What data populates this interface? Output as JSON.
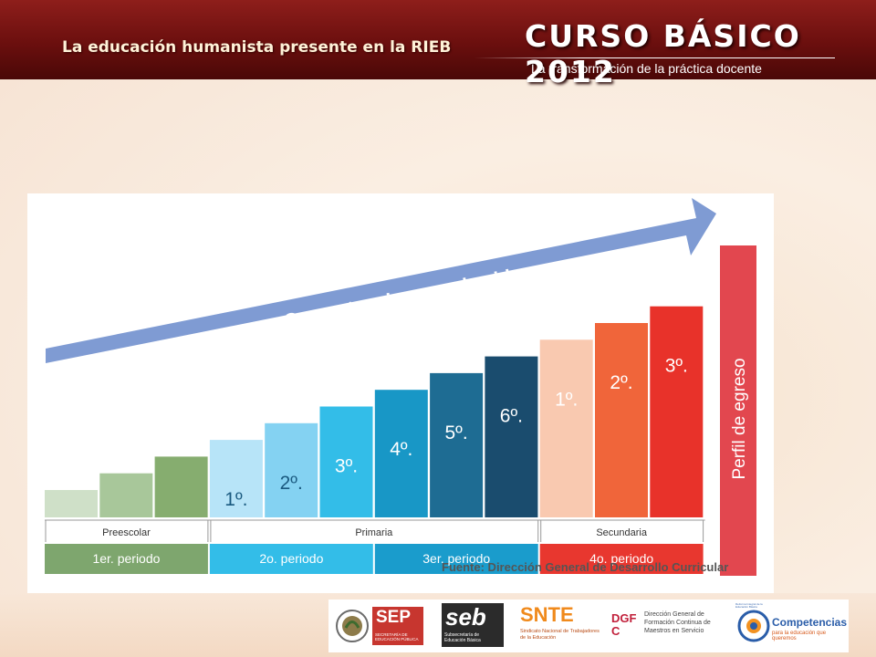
{
  "header": {
    "title": "La educación humanista presente en la RIEB",
    "brand": "CURSO BÁSICO 2012",
    "subtitle": "La transformación de la práctica docente"
  },
  "diagram": {
    "arrow_label": "Competencias para la vida",
    "bars": [
      {
        "label": "",
        "color": "#cfe0c8",
        "level": 1
      },
      {
        "label": "",
        "color": "#a8c79a",
        "level": 2
      },
      {
        "label": "",
        "color": "#86ad6f",
        "level": 3
      },
      {
        "label": "1º.",
        "color": "#b7e4f8",
        "level": 4
      },
      {
        "label": "2º.",
        "color": "#84d2f2",
        "level": 5
      },
      {
        "label": "3º.",
        "color": "#33bde8",
        "level": 6
      },
      {
        "label": "4º.",
        "color": "#1897c6",
        "level": 7
      },
      {
        "label": "5º.",
        "color": "#1e6c93",
        "level": 8
      },
      {
        "label": "6º.",
        "color": "#1a4c6e",
        "level": 9
      },
      {
        "label": "1º.",
        "color": "#f9c9b0",
        "level": 10
      },
      {
        "label": "2º.",
        "color": "#f0653a",
        "level": 11
      },
      {
        "label": "3º.",
        "color": "#e8322a",
        "level": 12
      }
    ],
    "final_bar": {
      "label": "Perfil de egreso",
      "color": "#e2474f"
    },
    "levels": [
      {
        "name": "Preescolar",
        "start": 0,
        "end": 3
      },
      {
        "name": "Primaria",
        "start": 3,
        "end": 9
      },
      {
        "name": "Secundaria",
        "start": 9,
        "end": 12
      }
    ],
    "periods": [
      {
        "name": "1er. periodo",
        "start": 0,
        "end": 3,
        "color": "#7ea66e"
      },
      {
        "name": "2o. periodo",
        "start": 3,
        "end": 6,
        "color": "#33bde8"
      },
      {
        "name": "3er. periodo",
        "start": 6,
        "end": 9,
        "color": "#1a9ccc"
      },
      {
        "name": "4o. periodo",
        "start": 9,
        "end": 12,
        "color": "#e8372f"
      }
    ],
    "source": "Fuente: Dirección General de Desarrollo Curricular"
  },
  "logos": {
    "sep": "SEP",
    "sep_sub": "SECRETARÍA DE EDUCACIÓN PÚBLICA",
    "seb": "seb",
    "seb_sub": "Subsecretaría de Educación Básica",
    "snte": "SNTE",
    "snte_sub": "Sindicato Nacional de Trabajadores de la Educación",
    "dgfc": "DGFC",
    "dgfc_sub": "Dirección General de Formación Continua de Maestros en Servicio",
    "comp_ring": "Reforma Integral de la Educación Básica",
    "comp": "Competencias",
    "comp_sub": "para la educación que queremos"
  }
}
